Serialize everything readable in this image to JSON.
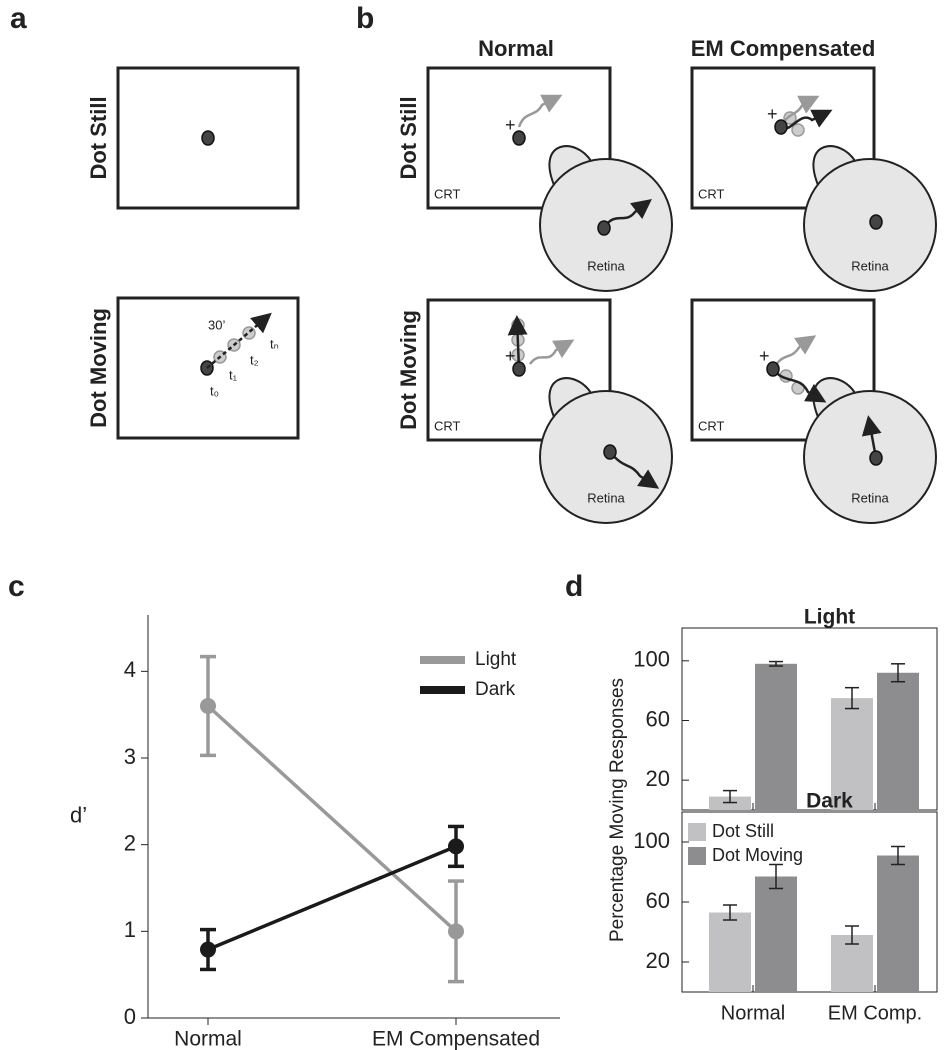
{
  "panel_a": {
    "label": "a",
    "rows": [
      "Dot Still",
      "Dot Moving"
    ],
    "distance": "30’",
    "times": [
      "t₀",
      "t₁",
      "t₂",
      "tₙ"
    ]
  },
  "panel_b": {
    "label": "b",
    "columns": [
      "Normal",
      "EM Compensated"
    ],
    "rows": [
      "Dot Still",
      "Dot Moving"
    ],
    "screen": "CRT",
    "eye": "Retina"
  },
  "panel_c_label": "c",
  "panel_d_label": "d",
  "chart_data": [
    {
      "type": "line",
      "ylabel": "d’",
      "categories": [
        "Normal",
        "EM Compensated"
      ],
      "ylim": [
        0,
        4.65
      ],
      "yticks": [
        0,
        1,
        2,
        3,
        4
      ],
      "legend": "upper right",
      "series": [
        {
          "name": "Light",
          "color": "#999999",
          "values": [
            3.6,
            1.0
          ],
          "errors": [
            0.57,
            0.58
          ]
        },
        {
          "name": "Dark",
          "color": "#1a1a1a",
          "values": [
            0.79,
            1.98
          ],
          "errors": [
            0.23,
            0.23
          ]
        }
      ]
    },
    {
      "type": "bar",
      "title": "Light",
      "ylabel": "Percentage Moving Responses",
      "categories": [
        null,
        null
      ],
      "ylim": [
        0,
        122
      ],
      "yticks": [
        20,
        60,
        100
      ],
      "series": [
        {
          "color": "#c1c1c3",
          "values": [
            9,
            75
          ],
          "errors": [
            4,
            7
          ]
        },
        {
          "color": "#8d8d8f",
          "values": [
            98,
            92
          ],
          "errors": [
            1.5,
            6
          ]
        }
      ]
    },
    {
      "type": "bar",
      "title": "Dark",
      "categories": [
        "Normal",
        "EM Comp."
      ],
      "ylim": [
        0,
        120
      ],
      "yticks": [
        20,
        60,
        100
      ],
      "legend": "upper left",
      "series": [
        {
          "name": "Dot Still",
          "color": "#c1c1c3",
          "values": [
            53,
            38
          ],
          "errors": [
            5,
            6
          ]
        },
        {
          "name": "Dot Moving",
          "color": "#8d8d8f",
          "values": [
            77,
            91
          ],
          "errors": [
            8,
            6
          ]
        }
      ]
    }
  ]
}
